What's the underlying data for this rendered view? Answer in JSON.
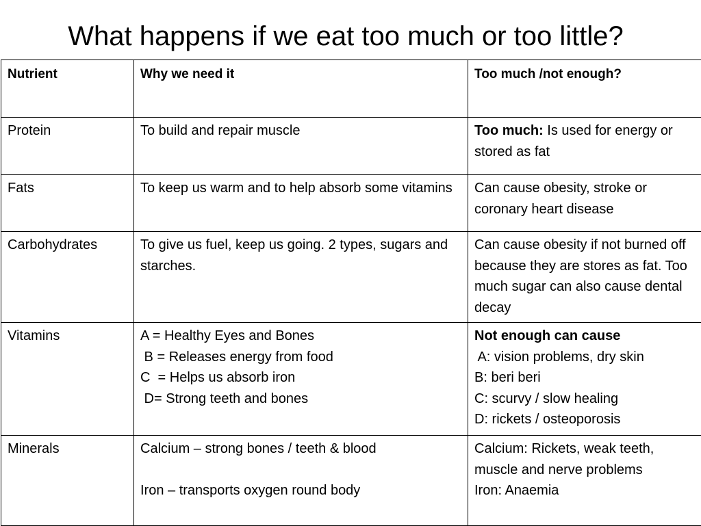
{
  "title": "What happens if we eat too much or too little?",
  "table": {
    "headers": [
      "Nutrient",
      "Why we need it",
      "Too much /not enough?"
    ],
    "rows": [
      {
        "nutrient": "Protein",
        "why": [
          "To build and repair muscle"
        ],
        "effect_bold": "Too much:",
        "effect": " Is used for energy or stored as fat"
      },
      {
        "nutrient": "Fats",
        "why": [
          "To keep us warm and to help absorb some vitamins"
        ],
        "effect": "Can cause obesity, stroke or coronary heart disease"
      },
      {
        "nutrient": "Carbohydrates",
        "why": [
          "To give us fuel, keep us going. 2 types, sugars and starches."
        ],
        "effect": "Can cause obesity if not burned off because they are stores as fat. Too much sugar can also cause dental decay"
      },
      {
        "nutrient": "Vitamins",
        "why": [
          "A = Healthy Eyes and Bones",
          " B = Releases energy from food",
          "C  = Helps us absorb iron",
          " D= Strong teeth and bones"
        ],
        "effect_heading": "Not enough can cause",
        "effect_lines": [
          " A: vision problems, dry skin",
          "B: beri beri",
          "C: scurvy / slow healing",
          "D: rickets / osteoporosis"
        ]
      },
      {
        "nutrient": "Minerals",
        "why": [
          "Calcium – strong bones / teeth & blood",
          "Iron – transports oxygen round body"
        ],
        "effect_lines": [
          "Calcium: Rickets, weak teeth, muscle and nerve problems",
          "Iron: Anaemia"
        ]
      }
    ]
  }
}
